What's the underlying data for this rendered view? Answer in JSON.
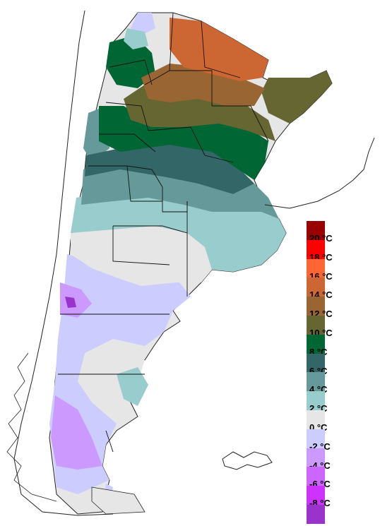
{
  "legend": {
    "items": [
      {
        "label": "20 °C",
        "color": "#990000"
      },
      {
        "label": "18 °C",
        "color": "#ff0000"
      },
      {
        "label": "16 °C",
        "color": "#ff6633"
      },
      {
        "label": "14 °C",
        "color": "#cc6633"
      },
      {
        "label": "12 °C",
        "color": "#996633"
      },
      {
        "label": "10 °C",
        "color": "#666633"
      },
      {
        "label": "8 °C",
        "color": "#006633"
      },
      {
        "label": "6 °C",
        "color": "#336666"
      },
      {
        "label": "4 °C",
        "color": "#669999"
      },
      {
        "label": "2 °C",
        "color": "#99cccc"
      },
      {
        "label": "0 °C",
        "color": "#e6e6e6"
      },
      {
        "label": "-2 °C",
        "color": "#ccccff"
      },
      {
        "label": "-4 °C",
        "color": "#cc99ff"
      },
      {
        "label": "-6 °C",
        "color": "#cc66ff"
      },
      {
        "label": "-8 °C",
        "color": "#cc33ff"
      },
      {
        "label": "",
        "color": "#9933cc"
      }
    ]
  }
}
